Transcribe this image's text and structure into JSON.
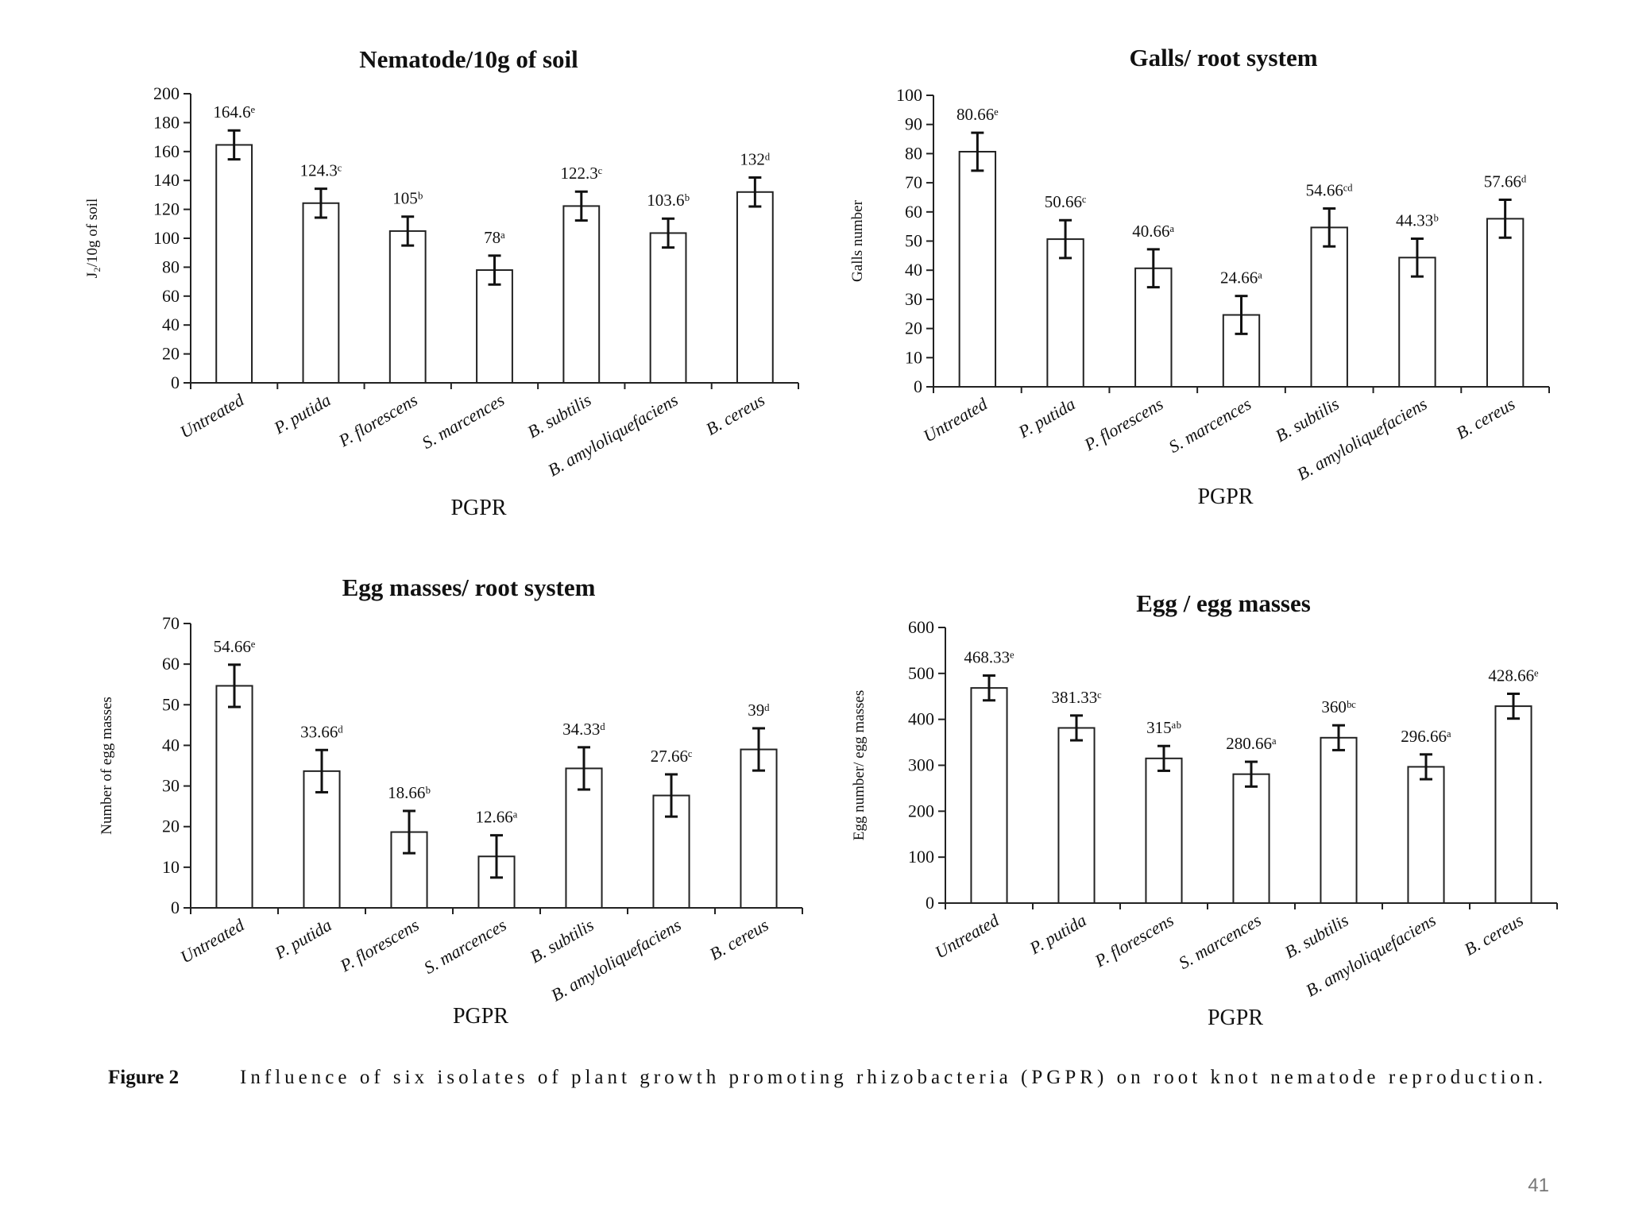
{
  "caption": {
    "label": "Figure 2",
    "text": "Influence of six isolates of plant growth promoting rhizobacteria (PGPR) on root knot nematode reproduction."
  },
  "page_number": "41",
  "chart_data": [
    {
      "type": "bar",
      "title": "Nematode/10g of soil",
      "xlabel": "PGPR",
      "ylabel": "J₂/10g of soil",
      "ylim": [
        0,
        200
      ],
      "yticks": [
        0,
        20,
        40,
        60,
        80,
        100,
        120,
        140,
        160,
        180,
        200
      ],
      "categories": [
        "Untreated",
        "P. putida",
        "P. florescens",
        "S. marcences",
        "B. subtilis",
        "B. amyloliquefaciens",
        "B. cereus"
      ],
      "values": [
        164.6,
        124.3,
        105,
        78,
        122.3,
        103.6,
        132
      ],
      "errors": [
        10,
        10,
        10,
        10,
        10,
        10,
        10
      ],
      "labels": [
        "164.6ᵉ",
        "124.3ᶜ",
        "105ᵇ",
        "78ᵃ",
        "122.3ᶜ",
        "103.6ᵇ",
        "132ᵈ"
      ]
    },
    {
      "type": "bar",
      "title": "Galls/ root system",
      "xlabel": "PGPR",
      "ylabel": "Galls number",
      "ylim": [
        0,
        100
      ],
      "yticks": [
        0,
        10,
        20,
        30,
        40,
        50,
        60,
        70,
        80,
        90,
        100
      ],
      "categories": [
        "Untreated",
        "P. putida",
        "P. florescens",
        "S. marcences",
        "B. subtilis",
        "B. amyloliquefaciens",
        "B. cereus"
      ],
      "values": [
        80.66,
        50.66,
        40.66,
        24.66,
        54.66,
        44.33,
        57.66
      ],
      "errors": [
        6.5,
        6.5,
        6.5,
        6.5,
        6.5,
        6.5,
        6.5
      ],
      "labels": [
        "80.66ᵉ",
        "50.66ᶜ",
        "40.66ᵃ",
        "24.66ᵃ",
        "54.66ᶜᵈ",
        "44.33ᵇ",
        "57.66ᵈ"
      ]
    },
    {
      "type": "bar",
      "title": "Egg masses/ root system",
      "xlabel": "PGPR",
      "ylabel": "Number of egg masses",
      "ylim": [
        0,
        70
      ],
      "yticks": [
        0,
        10,
        20,
        30,
        40,
        50,
        60,
        70
      ],
      "categories": [
        "Untreated",
        "P. putida",
        "P. florescens",
        "S. marcences",
        "B. subtilis",
        "B. amyloliquefaciens",
        "B. cereus"
      ],
      "values": [
        54.66,
        33.66,
        18.66,
        12.66,
        34.33,
        27.66,
        39
      ],
      "errors": [
        5.2,
        5.2,
        5.2,
        5.2,
        5.2,
        5.2,
        5.2
      ],
      "labels": [
        "54.66ᵉ",
        "33.66ᵈ",
        "18.66ᵇ",
        "12.66ᵃ",
        "34.33ᵈ",
        "27.66ᶜ",
        "39ᵈ"
      ]
    },
    {
      "type": "bar",
      "title": "Egg / egg masses",
      "xlabel": "PGPR",
      "ylabel": "Egg number/ egg masses",
      "ylim": [
        0,
        600
      ],
      "yticks": [
        0,
        100,
        200,
        300,
        400,
        500,
        600
      ],
      "categories": [
        "Untreated",
        "P. putida",
        "P. florescens",
        "S. marcences",
        "B. subtilis",
        "B. amyloliquefaciens",
        "B. cereus"
      ],
      "values": [
        468.33,
        381.33,
        315,
        280.66,
        360,
        296.66,
        428.66
      ],
      "errors": [
        27,
        27,
        27,
        27,
        27,
        27,
        27
      ],
      "labels": [
        "468.33ᵉ",
        "381.33ᶜ",
        "315ᵃᵇ",
        "280.66ᵃ",
        "360ᵇᶜ",
        "296.66ᵃ",
        "428.66ᵉ"
      ]
    }
  ]
}
